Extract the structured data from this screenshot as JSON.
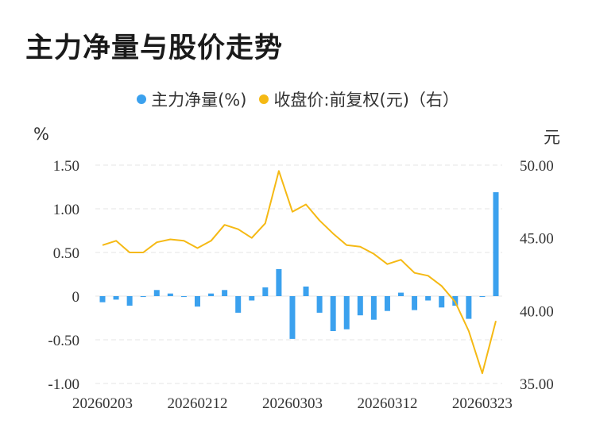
{
  "title": "主力净量与股价走势",
  "legend": {
    "left_series": "主力净量(%)",
    "right_series": "收盘价:前复权(元)（右）"
  },
  "units": {
    "left": "%",
    "right": "元"
  },
  "colors": {
    "bar": "#3ba1ee",
    "line": "#f5b914",
    "grid": "#e6e6e6",
    "text": "#333333"
  },
  "chart_data": {
    "type": "bar",
    "x_labels": [
      "20260203",
      "20260212",
      "20260303",
      "20260312",
      "20260323"
    ],
    "y_left": {
      "range": [
        -1.0,
        1.5
      ],
      "ticks": [
        "1.50",
        "1.00",
        "0.50",
        "0",
        "-0.50",
        "-1.00"
      ]
    },
    "y_right": {
      "range": [
        35.0,
        50.0
      ],
      "ticks": [
        "50.00",
        "45.00",
        "40.00",
        "35.00"
      ]
    },
    "grid": true,
    "series": [
      {
        "name": "主力净量(%)",
        "type": "bar",
        "axis": "left",
        "values": [
          -0.07,
          -0.04,
          -0.11,
          -0.01,
          0.07,
          0.03,
          -0.01,
          -0.12,
          0.03,
          0.07,
          -0.19,
          -0.05,
          0.1,
          0.31,
          -0.49,
          0.11,
          -0.19,
          -0.4,
          -0.38,
          -0.22,
          -0.27,
          -0.17,
          0.04,
          -0.16,
          -0.05,
          -0.13,
          -0.11,
          -0.26,
          -0.01,
          1.19
        ]
      },
      {
        "name": "收盘价:前复权(元)（右）",
        "type": "line",
        "axis": "right",
        "values": [
          44.5,
          44.8,
          44.0,
          44.0,
          44.7,
          44.9,
          44.8,
          44.3,
          44.8,
          45.9,
          45.6,
          45.0,
          46.0,
          49.6,
          46.8,
          47.3,
          46.2,
          45.3,
          44.5,
          44.4,
          43.9,
          43.2,
          43.5,
          42.6,
          42.4,
          41.7,
          40.6,
          38.6,
          35.7,
          39.3
        ]
      }
    ]
  }
}
